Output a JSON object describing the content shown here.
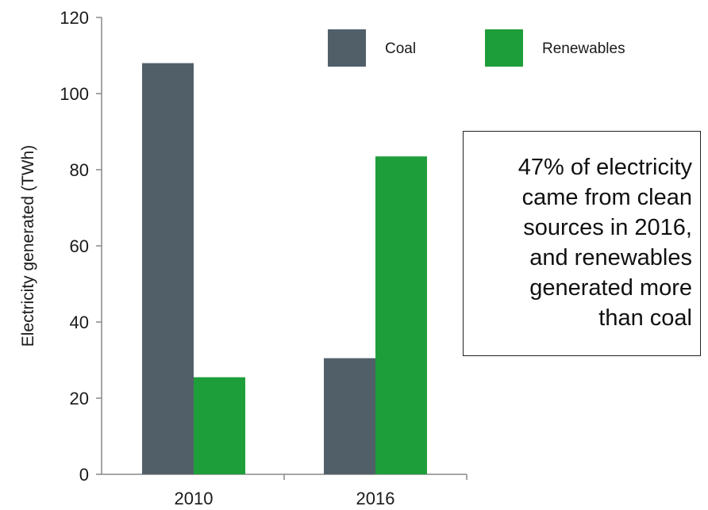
{
  "chart_data": {
    "type": "bar",
    "categories": [
      "2010",
      "2016"
    ],
    "series": [
      {
        "name": "Coal",
        "color": "#515f69",
        "values": [
          108,
          30.5
        ]
      },
      {
        "name": "Renewables",
        "color": "#1e9e3a",
        "values": [
          25.5,
          83.5
        ]
      }
    ],
    "ylabel": "Electricity generated (TWh)",
    "xlabel": "",
    "ylim": [
      0,
      120
    ],
    "yticks": [
      "0",
      "20",
      "40",
      "60",
      "80",
      "100",
      "120"
    ],
    "legend_position": "top-right",
    "grid": false,
    "annotation": "47% of electricity\ncame from clean\nsources in 2016,\nand renewables\ngenerated more\nthan coal"
  }
}
